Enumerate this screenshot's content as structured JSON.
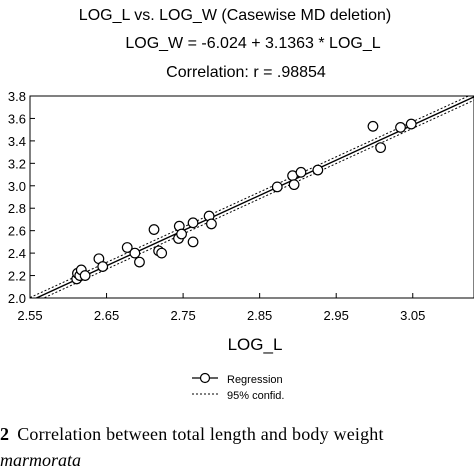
{
  "chart_data": {
    "type": "scatter",
    "title": "LOG_L vs. LOG_W (Casewise MD deletion)",
    "subtitle_lines": [
      "LOG_W = -6.024 + 3.1363 * LOG_L",
      "Correlation: r = .98854"
    ],
    "xlabel": "LOG_L",
    "ylabel": "",
    "xlim": [
      2.55,
      3.13
    ],
    "ylim": [
      2.0,
      3.8
    ],
    "x_ticks": [
      2.55,
      2.65,
      2.75,
      2.85,
      2.95,
      3.05
    ],
    "x_tick_labels": [
      "2.55",
      "2.65",
      "2.75",
      "2.85",
      "2.95",
      "3.05"
    ],
    "y_ticks": [
      2.0,
      2.2,
      2.4,
      2.6,
      2.8,
      3.0,
      3.2,
      3.4,
      3.6,
      3.8
    ],
    "y_tick_labels": [
      "2.0",
      "2.2",
      "2.4",
      "2.6",
      "2.8",
      "3.0",
      "3.2",
      "3.4",
      "3.6",
      "3.8"
    ],
    "grid": false,
    "legend_placement": "bottom-center",
    "legend": {
      "regression_label": "Regression",
      "confidence_label": "95% confid."
    },
    "regression": {
      "intercept": -6.024,
      "slope": 3.1363
    },
    "confidence_offset": 0.03,
    "series": [
      {
        "name": "Regression",
        "points": [
          [
            2.611,
            2.17
          ],
          [
            2.612,
            2.22
          ],
          [
            2.615,
            2.2
          ],
          [
            2.617,
            2.25
          ],
          [
            2.622,
            2.2
          ],
          [
            2.64,
            2.35
          ],
          [
            2.645,
            2.28
          ],
          [
            2.677,
            2.45
          ],
          [
            2.687,
            2.4
          ],
          [
            2.693,
            2.32
          ],
          [
            2.712,
            2.61
          ],
          [
            2.718,
            2.42
          ],
          [
            2.722,
            2.4
          ],
          [
            2.744,
            2.53
          ],
          [
            2.745,
            2.64
          ],
          [
            2.748,
            2.57
          ],
          [
            2.763,
            2.67
          ],
          [
            2.763,
            2.5
          ],
          [
            2.784,
            2.73
          ],
          [
            2.787,
            2.66
          ],
          [
            2.873,
            2.99
          ],
          [
            2.893,
            3.09
          ],
          [
            2.895,
            3.01
          ],
          [
            2.904,
            3.12
          ],
          [
            2.926,
            3.14
          ],
          [
            2.998,
            3.53
          ],
          [
            3.008,
            3.34
          ],
          [
            3.034,
            3.52
          ],
          [
            3.048,
            3.55
          ]
        ]
      }
    ],
    "colors": {
      "axes": "#000000",
      "points_stroke": "#000000",
      "points_fill": "#ffffff"
    }
  },
  "caption": {
    "figure_number": "2",
    "text": "Correlation between total length and body weight",
    "line2": "marmorata"
  }
}
